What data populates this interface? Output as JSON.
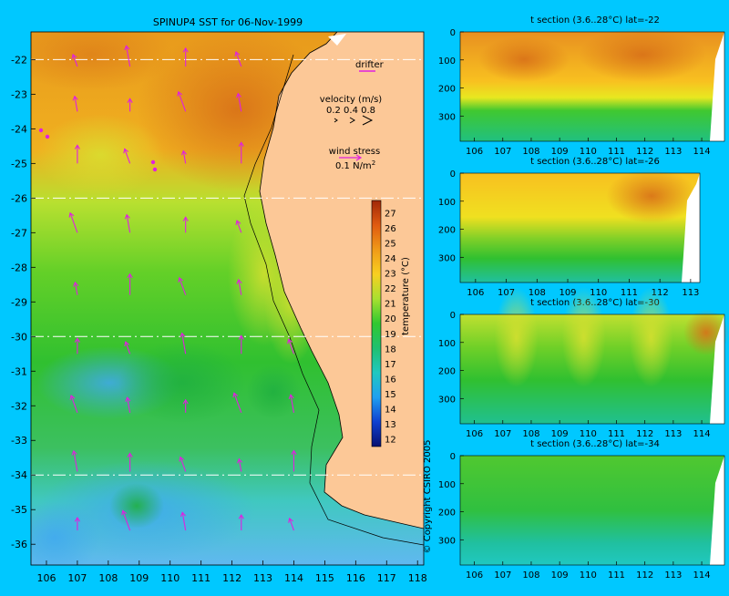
{
  "map": {
    "title": "SPINUP4 SST for 06-Nov-1999",
    "x_ticks": [
      "106",
      "107",
      "108",
      "109",
      "110",
      "111",
      "112",
      "113",
      "114",
      "115",
      "116",
      "117",
      "118"
    ],
    "y_ticks": [
      "-22",
      "-23",
      "-24",
      "-25",
      "-26",
      "-27",
      "-28",
      "-29",
      "-30",
      "-31",
      "-32",
      "-33",
      "-34",
      "-35",
      "-36"
    ],
    "legend": {
      "drifter": "drifter",
      "velocity_title": "velocity (m/s)",
      "velocity_values": "0.2 0.4 0.8",
      "wind_title": "wind stress",
      "wind_value": "0.1 N/m",
      "wind_sup": "2"
    },
    "colorbar": {
      "label": "temperature (°C)",
      "ticks": [
        "27",
        "26",
        "25",
        "24",
        "23",
        "22",
        "21",
        "20",
        "19",
        "18",
        "17",
        "16",
        "15",
        "14",
        "13",
        "12"
      ]
    },
    "copyright": "© Copyright CSIRO 2005"
  },
  "sections": [
    {
      "title": "t section (3.6..28°C) lat=-22",
      "x_ticks": [
        "106",
        "107",
        "108",
        "109",
        "110",
        "111",
        "112",
        "113",
        "114"
      ],
      "y_ticks": [
        "0",
        "100",
        "200",
        "300"
      ]
    },
    {
      "title": "t section (3.6..28°C) lat=-26",
      "x_ticks": [
        "106",
        "107",
        "108",
        "109",
        "110",
        "111",
        "112",
        "113"
      ],
      "y_ticks": [
        "0",
        "100",
        "200",
        "300"
      ]
    },
    {
      "title": "t section (3.6..28°C) lat=-30",
      "x_ticks": [
        "106",
        "107",
        "108",
        "109",
        "110",
        "111",
        "112",
        "113",
        "114"
      ],
      "y_ticks": [
        "0",
        "100",
        "200",
        "300"
      ]
    },
    {
      "title": "t section (3.6..28°C) lat=-34",
      "x_ticks": [
        "106",
        "107",
        "108",
        "109",
        "110",
        "111",
        "112",
        "113",
        "114"
      ],
      "y_ticks": [
        "0",
        "100",
        "200",
        "300"
      ]
    }
  ],
  "colors": {
    "background": "#00c8ff",
    "land": "#fcc897",
    "arrows": "#e020e0"
  },
  "chart_data": [
    {
      "type": "heatmap",
      "title": "SPINUP4 SST for 06-Nov-1999",
      "xlim": [
        105.5,
        118.2
      ],
      "ylim": [
        -36.6,
        -21.2
      ],
      "colorbar_range": [
        11.5,
        27.8
      ]
    },
    {
      "type": "heatmap",
      "title": "t section (3.6..28°C) lat=-22",
      "xlim": [
        105.5,
        114.8
      ],
      "ylim": [
        390,
        0
      ]
    },
    {
      "type": "heatmap",
      "title": "t section (3.6..28°C) lat=-26",
      "xlim": [
        105.5,
        113.3
      ],
      "ylim": [
        390,
        0
      ]
    },
    {
      "type": "heatmap",
      "title": "t section (3.6..28°C) lat=-30",
      "xlim": [
        105.5,
        114.8
      ],
      "ylim": [
        390,
        0
      ]
    },
    {
      "type": "heatmap",
      "title": "t section (3.6..28°C) lat=-34",
      "xlim": [
        105.5,
        114.8
      ],
      "ylim": [
        390,
        0
      ]
    }
  ]
}
